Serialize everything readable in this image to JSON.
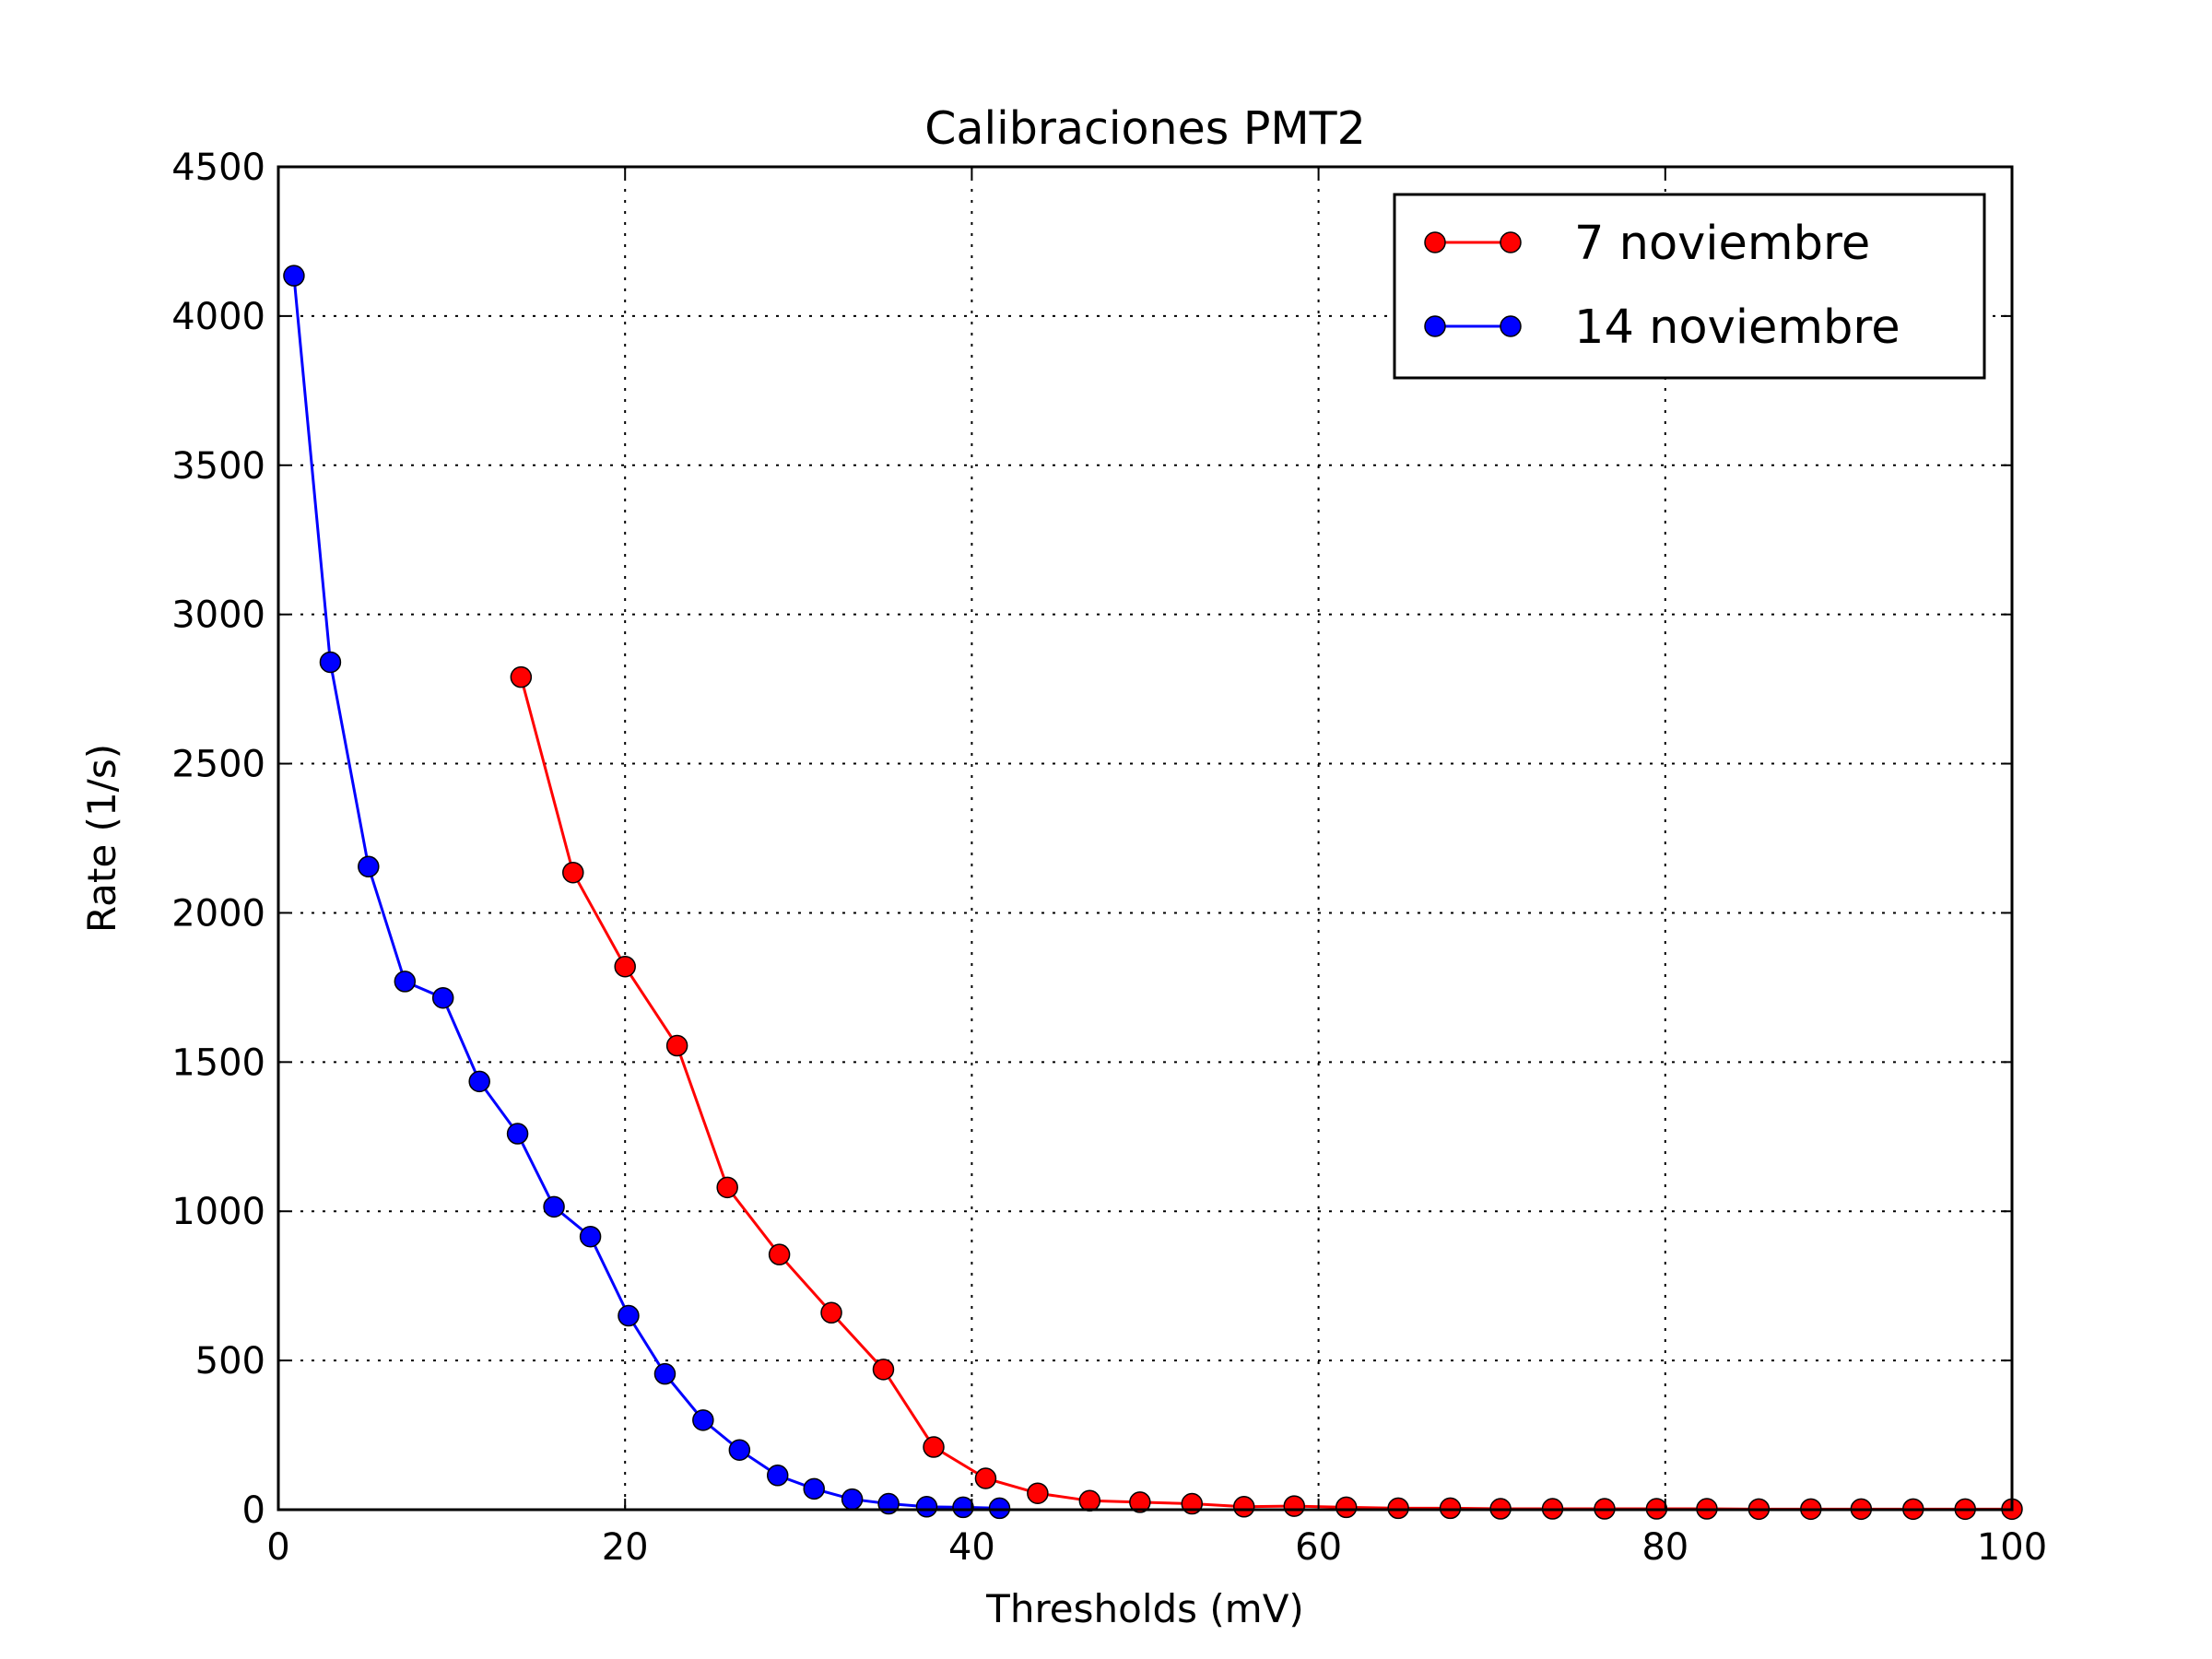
{
  "chart_data": {
    "type": "line",
    "title": "Calibraciones PMT2",
    "xlabel": "Thresholds (mV)",
    "ylabel": "Rate (1/s)",
    "xlim": [
      0,
      100
    ],
    "ylim": [
      0,
      4500
    ],
    "xticks": [
      0,
      20,
      40,
      60,
      80,
      100
    ],
    "yticks": [
      0,
      500,
      1000,
      1500,
      2000,
      2500,
      3000,
      3500,
      4000,
      4500
    ],
    "grid": true,
    "legend_position": "upper right",
    "series": [
      {
        "name": "7 noviembre",
        "color": "#ff0000",
        "x": [
          14.0,
          17.0,
          20.0,
          23.0,
          25.9,
          28.9,
          31.9,
          34.9,
          37.8,
          40.8,
          43.8,
          46.8,
          49.7,
          52.7,
          55.7,
          58.6,
          61.6,
          64.6,
          67.6,
          70.5,
          73.5,
          76.5,
          79.5,
          82.4,
          85.4,
          88.4,
          91.3,
          94.3,
          97.3,
          100.0
        ],
        "y": [
          2790,
          2135,
          1820,
          1555,
          1080,
          855,
          660,
          470,
          210,
          105,
          55,
          30,
          25,
          20,
          10,
          12,
          8,
          5,
          5,
          3,
          3,
          3,
          3,
          3,
          2,
          2,
          2,
          2,
          2,
          2
        ]
      },
      {
        "name": "14 noviembre",
        "color": "#0000ff",
        "x": [
          0.9,
          3.0,
          5.2,
          7.3,
          9.5,
          11.6,
          13.8,
          15.9,
          18.0,
          20.2,
          22.3,
          24.5,
          26.6,
          28.8,
          30.9,
          33.1,
          35.2,
          37.4,
          39.5,
          41.6
        ],
        "y": [
          4135,
          2840,
          2155,
          1770,
          1715,
          1435,
          1260,
          1015,
          915,
          650,
          455,
          300,
          200,
          115,
          70,
          35,
          20,
          10,
          8,
          5
        ]
      }
    ]
  }
}
